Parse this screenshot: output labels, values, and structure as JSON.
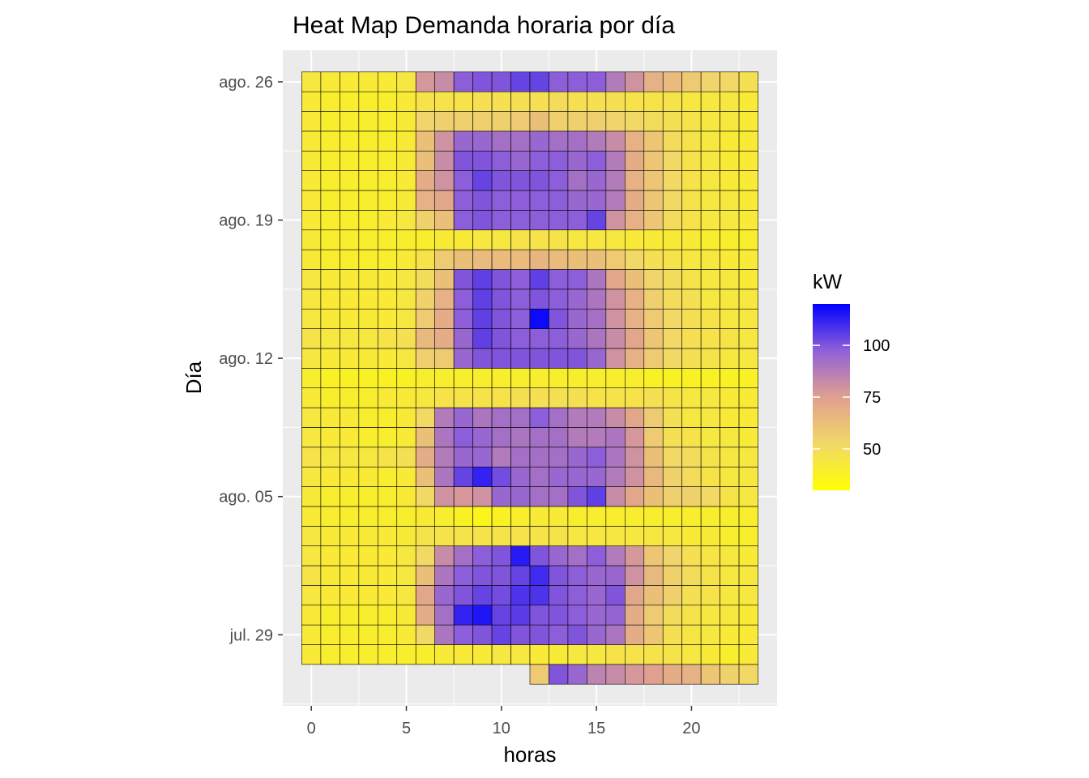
{
  "chart_data": {
    "type": "heatmap",
    "title": "Heat Map Demanda horaria por día",
    "xlabel": "horas",
    "ylabel": "Día",
    "x": [
      0,
      1,
      2,
      3,
      4,
      5,
      6,
      7,
      8,
      9,
      10,
      11,
      12,
      13,
      14,
      15,
      16,
      17,
      18,
      19,
      20,
      21,
      22,
      23
    ],
    "x_ticks": [
      0,
      5,
      10,
      15,
      20
    ],
    "xlim": [
      -1.5,
      24.5
    ],
    "y_dates": [
      "27 jul.",
      "28 jul.",
      "29 jul.",
      "30 jul.",
      "31 jul.",
      "1 ago.",
      "2 ago.",
      "3 ago.",
      "4 ago.",
      "5 ago.",
      "6 ago.",
      "7 ago.",
      "8 ago.",
      "9 ago.",
      "10 ago.",
      "11 ago.",
      "12 ago.",
      "13 ago.",
      "14 ago.",
      "15 ago.",
      "16 ago.",
      "17 ago.",
      "18 ago.",
      "19 ago.",
      "20 ago.",
      "21 ago.",
      "22 ago.",
      "23 ago.",
      "24 ago.",
      "25 ago.",
      "26 ago."
    ],
    "y_ticks": [
      {
        "index": 2,
        "label": "jul. 29"
      },
      {
        "index": 9,
        "label": "ago. 05"
      },
      {
        "index": 16,
        "label": "ago. 12"
      },
      {
        "index": 23,
        "label": "ago. 19"
      },
      {
        "index": 30,
        "label": "ago. 26"
      }
    ],
    "ylim_index": [
      -1.6,
      31.6
    ],
    "grid": true,
    "legend": {
      "title": "kW",
      "position": "right",
      "min": 30,
      "max": 120,
      "breaks": [
        50,
        75,
        100
      ],
      "colors": {
        "low": "#FFFF00",
        "mid": "#E0A090",
        "high": "#0000FF"
      }
    },
    "rows": [
      {
        "day_index": 0,
        "start_hour": 12,
        "values": [
          58,
          100,
          95,
          85,
          82,
          78,
          75,
          70,
          68,
          60,
          55,
          52
        ]
      },
      {
        "day_index": 1,
        "start_hour": 0,
        "values": [
          42,
          40,
          40,
          40,
          40,
          40,
          40,
          42,
          42,
          42,
          44,
          44,
          42,
          42,
          44,
          44,
          46,
          46,
          46,
          46,
          44,
          42,
          40,
          42
        ]
      },
      {
        "day_index": 2,
        "start_hour": 0,
        "values": [
          42,
          40,
          40,
          40,
          40,
          42,
          52,
          90,
          98,
          100,
          104,
          100,
          100,
          98,
          100,
          95,
          90,
          70,
          60,
          48,
          45,
          44,
          42,
          42
        ]
      },
      {
        "day_index": 3,
        "start_hour": 0,
        "values": [
          42,
          40,
          40,
          40,
          40,
          42,
          70,
          92,
          112,
          115,
          104,
          106,
          100,
          100,
          98,
          95,
          96,
          70,
          58,
          50,
          46,
          44,
          44,
          42
        ]
      },
      {
        "day_index": 4,
        "start_hour": 0,
        "values": [
          44,
          42,
          42,
          42,
          42,
          44,
          72,
          95,
          100,
          104,
          102,
          108,
          108,
          100,
          98,
          95,
          100,
          72,
          62,
          56,
          48,
          46,
          44,
          44
        ]
      },
      {
        "day_index": 5,
        "start_hour": 0,
        "values": [
          46,
          42,
          42,
          42,
          42,
          44,
          62,
          90,
          98,
          100,
          100,
          104,
          110,
          100,
          98,
          95,
          95,
          80,
          65,
          55,
          50,
          46,
          44,
          44
        ]
      },
      {
        "day_index": 6,
        "start_hour": 0,
        "values": [
          44,
          42,
          42,
          42,
          42,
          44,
          52,
          82,
          92,
          98,
          100,
          114,
          100,
          95,
          92,
          98,
          88,
          78,
          60,
          54,
          48,
          45,
          44,
          42
        ]
      },
      {
        "day_index": 7,
        "start_hour": 0,
        "values": [
          44,
          42,
          42,
          42,
          42,
          42,
          46,
          46,
          46,
          46,
          46,
          46,
          46,
          46,
          44,
          44,
          44,
          44,
          44,
          44,
          42,
          42,
          40,
          40
        ]
      },
      {
        "day_index": 8,
        "start_hour": 0,
        "values": [
          42,
          40,
          40,
          40,
          40,
          40,
          42,
          40,
          38,
          36,
          38,
          40,
          42,
          42,
          40,
          40,
          40,
          40,
          40,
          40,
          40,
          40,
          40,
          40
        ]
      },
      {
        "day_index": 9,
        "start_hour": 0,
        "values": [
          42,
          40,
          40,
          40,
          40,
          42,
          52,
          80,
          78,
          80,
          95,
          95,
          92,
          92,
          100,
          105,
          82,
          72,
          62,
          56,
          55,
          52,
          46,
          44
        ]
      },
      {
        "day_index": 10,
        "start_hour": 0,
        "values": [
          44,
          42,
          42,
          42,
          40,
          42,
          62,
          90,
          104,
          112,
          102,
          95,
          92,
          95,
          95,
          95,
          88,
          80,
          65,
          55,
          50,
          46,
          44,
          44
        ]
      },
      {
        "day_index": 11,
        "start_hour": 0,
        "values": [
          46,
          44,
          44,
          44,
          46,
          48,
          70,
          88,
          95,
          95,
          88,
          92,
          92,
          92,
          95,
          98,
          90,
          80,
          62,
          52,
          50,
          46,
          44,
          44
        ]
      },
      {
        "day_index": 12,
        "start_hour": 0,
        "values": [
          44,
          42,
          42,
          40,
          40,
          42,
          62,
          90,
          98,
          95,
          92,
          90,
          92,
          92,
          88,
          88,
          90,
          78,
          58,
          48,
          46,
          44,
          44,
          42
        ]
      },
      {
        "day_index": 13,
        "start_hour": 0,
        "values": [
          44,
          42,
          42,
          40,
          40,
          42,
          52,
          88,
          95,
          90,
          92,
          92,
          98,
          92,
          88,
          88,
          82,
          72,
          58,
          48,
          44,
          44,
          42,
          42
        ]
      },
      {
        "day_index": 14,
        "start_hour": 0,
        "values": [
          42,
          40,
          40,
          40,
          42,
          42,
          44,
          46,
          46,
          46,
          46,
          48,
          48,
          48,
          48,
          46,
          46,
          46,
          48,
          46,
          44,
          44,
          42,
          42
        ]
      },
      {
        "day_index": 15,
        "start_hour": 0,
        "values": [
          40,
          38,
          38,
          38,
          38,
          38,
          40,
          40,
          40,
          40,
          40,
          40,
          40,
          40,
          40,
          40,
          40,
          40,
          38,
          38,
          38,
          38,
          38,
          38
        ]
      },
      {
        "day_index": 16,
        "start_hour": 0,
        "values": [
          44,
          42,
          42,
          42,
          42,
          44,
          56,
          58,
          95,
          100,
          100,
          100,
          100,
          100,
          100,
          95,
          80,
          68,
          58,
          52,
          48,
          46,
          44,
          44
        ]
      },
      {
        "day_index": 17,
        "start_hour": 0,
        "values": [
          46,
          44,
          44,
          44,
          46,
          48,
          65,
          70,
          95,
          105,
          100,
          98,
          98,
          98,
          95,
          90,
          82,
          72,
          60,
          52,
          48,
          46,
          46,
          44
        ]
      },
      {
        "day_index": 18,
        "start_hour": 0,
        "values": [
          44,
          42,
          42,
          42,
          42,
          44,
          58,
          70,
          98,
          105,
          100,
          98,
          118,
          100,
          95,
          92,
          80,
          68,
          58,
          52,
          48,
          46,
          44,
          44
        ]
      },
      {
        "day_index": 19,
        "start_hour": 0,
        "values": [
          44,
          42,
          42,
          42,
          42,
          44,
          55,
          68,
          98,
          105,
          100,
          98,
          100,
          98,
          95,
          90,
          80,
          68,
          56,
          50,
          48,
          44,
          44,
          44
        ]
      },
      {
        "day_index": 20,
        "start_hour": 0,
        "values": [
          44,
          42,
          42,
          42,
          42,
          44,
          50,
          62,
          100,
          105,
          100,
          98,
          105,
          98,
          98,
          90,
          72,
          62,
          54,
          50,
          46,
          44,
          44,
          42
        ]
      },
      {
        "day_index": 21,
        "start_hour": 0,
        "values": [
          42,
          40,
          40,
          40,
          40,
          42,
          46,
          58,
          62,
          64,
          64,
          64,
          66,
          64,
          62,
          62,
          58,
          52,
          48,
          46,
          44,
          44,
          42,
          42
        ]
      },
      {
        "day_index": 22,
        "start_hour": 0,
        "values": [
          42,
          40,
          40,
          40,
          40,
          40,
          40,
          42,
          42,
          44,
          44,
          46,
          46,
          46,
          44,
          44,
          44,
          42,
          42,
          42,
          42,
          40,
          40,
          40
        ]
      },
      {
        "day_index": 23,
        "start_hour": 0,
        "values": [
          42,
          40,
          40,
          40,
          42,
          44,
          55,
          62,
          98,
          100,
          98,
          98,
          98,
          98,
          98,
          104,
          80,
          68,
          60,
          50,
          46,
          44,
          44,
          42
        ]
      },
      {
        "day_index": 24,
        "start_hour": 0,
        "values": [
          42,
          40,
          40,
          40,
          40,
          42,
          68,
          72,
          98,
          100,
          98,
          98,
          98,
          98,
          95,
          95,
          88,
          70,
          60,
          52,
          46,
          44,
          44,
          42
        ]
      },
      {
        "day_index": 25,
        "start_hour": 0,
        "values": [
          42,
          40,
          40,
          40,
          40,
          42,
          70,
          80,
          98,
          104,
          100,
          100,
          100,
          98,
          92,
          95,
          88,
          68,
          60,
          52,
          46,
          44,
          42,
          42
        ]
      },
      {
        "day_index": 26,
        "start_hour": 0,
        "values": [
          42,
          40,
          40,
          40,
          40,
          42,
          62,
          82,
          100,
          100,
          98,
          95,
          98,
          98,
          95,
          98,
          88,
          70,
          60,
          52,
          46,
          44,
          42,
          42
        ]
      },
      {
        "day_index": 27,
        "start_hour": 0,
        "values": [
          42,
          40,
          40,
          40,
          40,
          42,
          62,
          80,
          95,
          95,
          92,
          92,
          95,
          92,
          92,
          88,
          82,
          68,
          60,
          50,
          46,
          44,
          42,
          42
        ]
      },
      {
        "day_index": 28,
        "start_hour": 0,
        "values": [
          42,
          40,
          40,
          40,
          40,
          42,
          54,
          56,
          56,
          56,
          56,
          58,
          62,
          56,
          56,
          56,
          54,
          52,
          50,
          48,
          46,
          44,
          44,
          42
        ]
      },
      {
        "day_index": 29,
        "start_hour": 0,
        "values": [
          42,
          40,
          40,
          40,
          40,
          42,
          46,
          46,
          46,
          48,
          48,
          48,
          48,
          50,
          48,
          48,
          48,
          46,
          46,
          46,
          44,
          44,
          44,
          42
        ]
      },
      {
        "day_index": 30,
        "start_hour": 0,
        "values": [
          44,
          42,
          42,
          42,
          42,
          44,
          78,
          82,
          98,
          100,
          100,
          104,
          104,
          98,
          98,
          98,
          88,
          80,
          68,
          64,
          58,
          54,
          52,
          48
        ]
      }
    ]
  }
}
